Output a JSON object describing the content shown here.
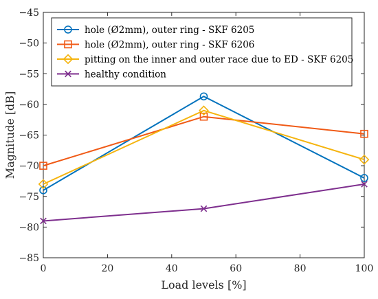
{
  "chart_data": {
    "type": "line",
    "xlabel": "Load levels [%]",
    "ylabel": "Magnitude [dB]",
    "xlim": [
      0,
      100
    ],
    "ylim": [
      -85,
      -45
    ],
    "xticks": [
      0,
      20,
      40,
      60,
      80,
      100
    ],
    "yticks": [
      -85,
      -80,
      -75,
      -70,
      -65,
      -60,
      -55,
      -50,
      -45
    ],
    "x": [
      0,
      50,
      100
    ],
    "grid": false,
    "legend_position": "top-right",
    "series": [
      {
        "name": "hole (Ø2mm), outer ring - SKF 6205",
        "values": [
          -74,
          -58.7,
          -72
        ],
        "color": "#0072BD",
        "marker": "circle"
      },
      {
        "name": "hole (Ø2mm), outer ring - SKF 6206",
        "values": [
          -70,
          -62,
          -64.8
        ],
        "color": "#F05A16",
        "marker": "square"
      },
      {
        "name": "pitting on the inner and outer race due to ED - SKF 6205",
        "values": [
          -73,
          -61,
          -69
        ],
        "color": "#F5B40E",
        "marker": "diamond"
      },
      {
        "name": "healthy condition",
        "values": [
          -79,
          -77,
          -73
        ],
        "color": "#7E2F8E",
        "marker": "x"
      }
    ]
  }
}
